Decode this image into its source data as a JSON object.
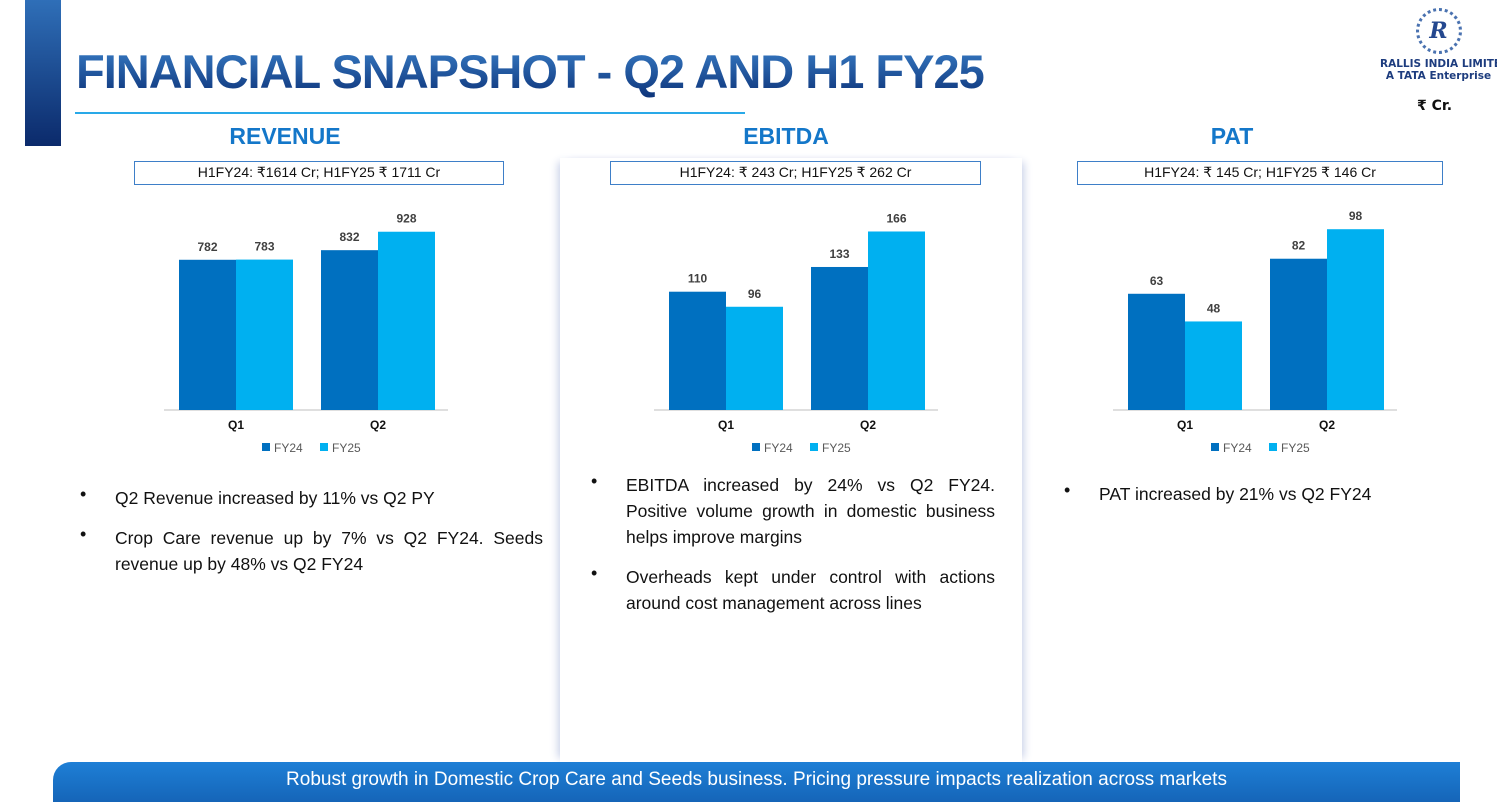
{
  "header": {
    "title": "FINANCIAL SNAPSHOT - Q2 AND H1 FY25",
    "unit": "₹ Cr."
  },
  "logo": {
    "mark": "R",
    "company": "RALLIS INDIA LIMITED",
    "tagline": "A TATA Enterprise"
  },
  "colors": {
    "fy24": "#0070c0",
    "fy25": "#00b0f0",
    "title": "#1477c9"
  },
  "sections": [
    {
      "title": "REVENUE",
      "summary": "H1FY24: ₹1614 Cr; H1FY25 ₹ 1711 Cr",
      "bullets": [
        "Q2 Revenue increased by 11% vs Q2 PY",
        "Crop Care revenue up by 7% vs Q2 FY24. Seeds revenue up by 48% vs Q2 FY24"
      ]
    },
    {
      "title": "EBITDA",
      "summary": "H1FY24: ₹ 243 Cr; H1FY25 ₹ 262 Cr",
      "bullets": [
        "EBITDA increased by 24% vs Q2 FY24. Positive volume growth in domestic business helps improve margins",
        "Overheads kept under control with actions around cost management across lines"
      ]
    },
    {
      "title": "PAT",
      "summary": "H1FY24: ₹ 145 Cr; H1FY25 ₹ 146 Cr",
      "bullets": [
        "PAT increased by 21% vs Q2 FY24"
      ]
    }
  ],
  "chart_data": [
    {
      "type": "bar",
      "title": "REVENUE",
      "categories": [
        "Q1",
        "Q2"
      ],
      "series": [
        {
          "name": "FY24",
          "values": [
            782,
            832
          ]
        },
        {
          "name": "FY25",
          "values": [
            783,
            928
          ]
        }
      ],
      "ylim": [
        0,
        1114
      ],
      "legend": "bottom"
    },
    {
      "type": "bar",
      "title": "EBITDA",
      "categories": [
        "Q1",
        "Q2"
      ],
      "series": [
        {
          "name": "FY24",
          "values": [
            110,
            133
          ]
        },
        {
          "name": "FY25",
          "values": [
            96,
            166
          ]
        }
      ],
      "ylim": [
        0,
        199
      ],
      "legend": "bottom"
    },
    {
      "type": "bar",
      "title": "PAT",
      "categories": [
        "Q1",
        "Q2"
      ],
      "series": [
        {
          "name": "FY24",
          "values": [
            63,
            82
          ]
        },
        {
          "name": "FY25",
          "values": [
            48,
            98
          ]
        }
      ],
      "ylim": [
        0,
        116
      ],
      "legend": "bottom"
    }
  ],
  "footer": {
    "banner": "Robust growth in Domestic Crop Care and Seeds business. Pricing pressure impacts realization across markets"
  }
}
